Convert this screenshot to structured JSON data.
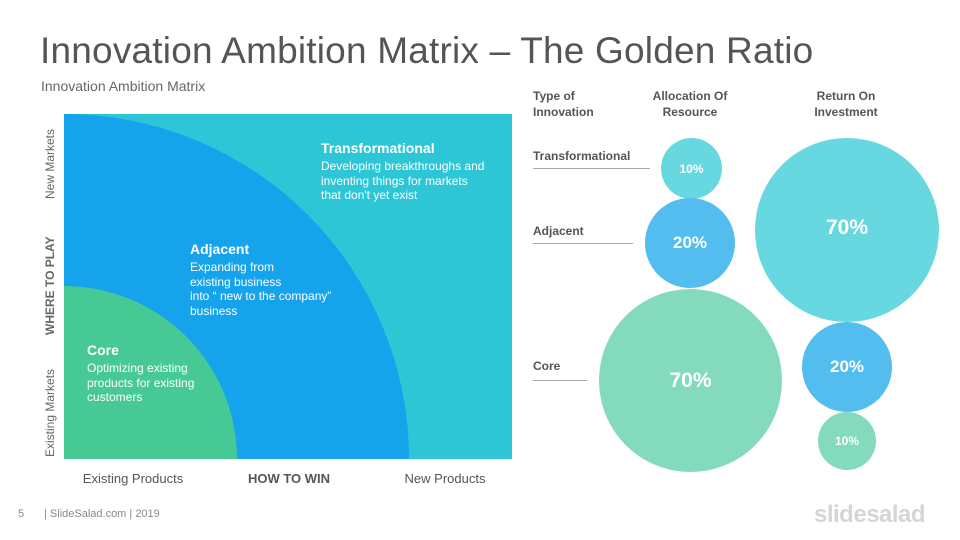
{
  "slide": {
    "title": "Innovation Ambition Matrix – The Golden Ratio",
    "subtitle": "Innovation Ambition Matrix"
  },
  "matrix": {
    "zones": [
      {
        "key": "core",
        "title": "Core",
        "description": "Optimizing existing\nproducts for existing\ncustomers",
        "color": "#47c995"
      },
      {
        "key": "adjacent",
        "title": "Adjacent",
        "description": "Expanding from\nexisting business\ninto “ new to the company”\nbusiness",
        "color": "#15a3ec"
      },
      {
        "key": "transformational",
        "title": "Transformational",
        "description": "Developing breakthroughs and\ninventing things for markets\nthat don't yet exist",
        "color": "#2dc6d6"
      }
    ],
    "y_axis": {
      "top_label": "New Markets",
      "center_label": "WHERE TO PLAY",
      "bottom_label": "Existing Markets"
    },
    "x_axis": {
      "left_label": "Existing Products",
      "center_label": "HOW TO WIN",
      "right_label": "New Products"
    }
  },
  "allocation_table": {
    "headers": {
      "type": "Type of\nInnovation",
      "allocation": "Allocation  Of\nResource",
      "return": "Return On\nInvestment"
    },
    "rows": [
      {
        "label": "Transformational",
        "allocation": "10%",
        "roi": "70%"
      },
      {
        "label": "Adjacent",
        "allocation": "20%",
        "roi": "20%"
      },
      {
        "label": "Core",
        "allocation": "70%",
        "roi": "10%"
      }
    ],
    "colors": {
      "transformational": "#67d8e0",
      "adjacent": "#52bdee",
      "core": "#84dabc"
    }
  },
  "footer": {
    "page_number": "5",
    "text": "| SlideSalad.com | 2019",
    "brand": "slidesalad"
  }
}
